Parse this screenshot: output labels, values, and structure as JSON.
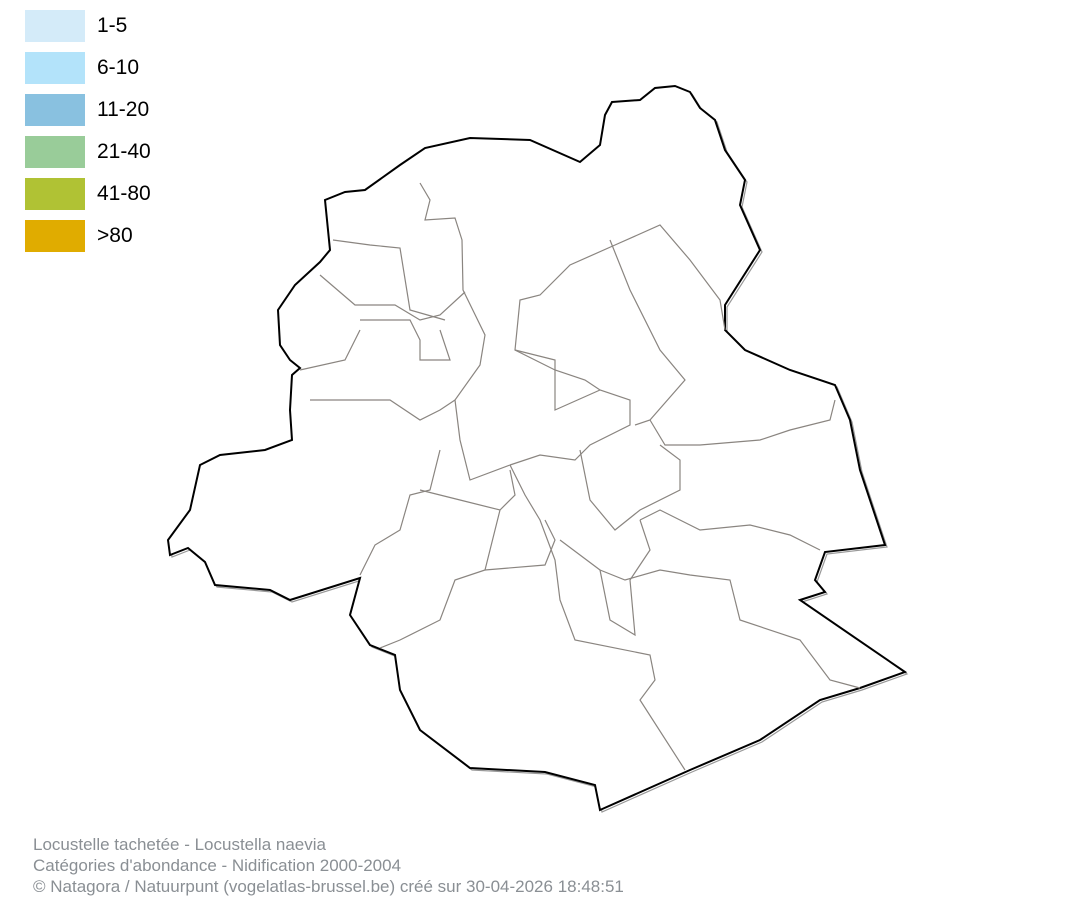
{
  "legend": {
    "items": [
      {
        "label": "1-5",
        "color": "#d4ebf9"
      },
      {
        "label": "6-10",
        "color": "#b3e3fa"
      },
      {
        "label": "11-20",
        "color": "#89c1e0"
      },
      {
        "label": "21-40",
        "color": "#99cc99"
      },
      {
        "label": "41-80",
        "color": "#b0c234"
      },
      {
        "label": ">80",
        "color": "#e0ac00"
      }
    ]
  },
  "map": {
    "region_fill": "#ffffff",
    "outline_color": "#000000",
    "inner_border_color": "#8a8580"
  },
  "footer": {
    "line1": "Locustelle tachetée - Locustella naevia",
    "line2": "Catégories d'abondance - Nidification 2000-2004",
    "line3": "© Natagora / Natuurpunt (vogelatlas-brussel.be) créé sur 30-04-2026 18:48:51"
  }
}
